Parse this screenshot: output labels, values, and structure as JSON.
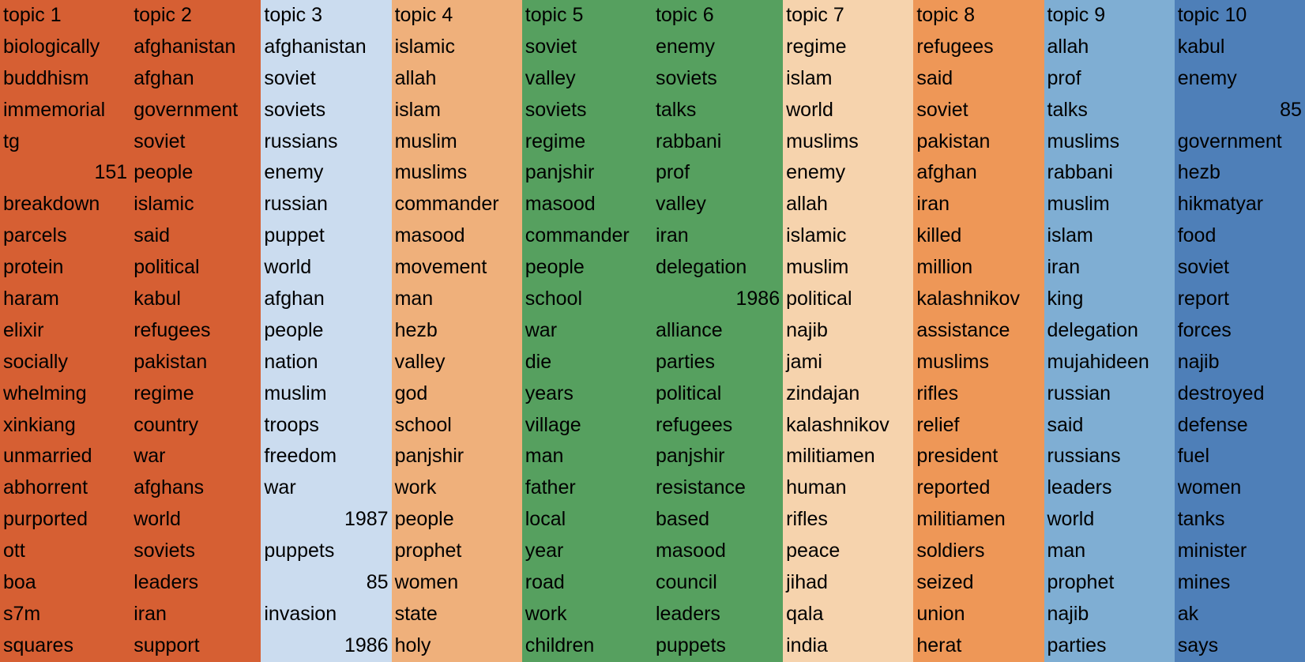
{
  "columns": [
    {
      "header": "topic 1",
      "color": "#D65F33",
      "words": [
        "biologically",
        "buddhism",
        "immemorial",
        "tg",
        "151",
        "breakdown",
        "parcels",
        "protein",
        "haram",
        "elixir",
        "socially",
        "whelming",
        "xinkiang",
        "unmarried",
        "abhorrent",
        "purported",
        "ott",
        "boa",
        "s7m",
        "squares"
      ]
    },
    {
      "header": "topic 2",
      "color": "#D65F33",
      "words": [
        "afghanistan",
        "afghan",
        "government",
        "soviet",
        "people",
        "islamic",
        "said",
        "political",
        "kabul",
        "refugees",
        "pakistan",
        "regime",
        "country",
        "war",
        "afghans",
        "world",
        "soviets",
        "leaders",
        "iran",
        "support"
      ]
    },
    {
      "header": "topic 3",
      "color": "#CBDCEF",
      "words": [
        "afghanistan",
        "soviet",
        "soviets",
        "russians",
        "enemy",
        "russian",
        "puppet",
        "world",
        "afghan",
        "people",
        "nation",
        "muslim",
        "troops",
        "freedom",
        "war",
        "1987",
        "puppets",
        "85",
        "invasion",
        "1986"
      ]
    },
    {
      "header": "topic 4",
      "color": "#EFB07B",
      "words": [
        "islamic",
        "allah",
        "islam",
        "muslim",
        "muslims",
        "commander",
        "masood",
        "movement",
        "man",
        "hezb",
        "valley",
        "god",
        "school",
        "panjshir",
        "work",
        "people",
        "prophet",
        "women",
        "state",
        "holy"
      ]
    },
    {
      "header": "topic 5",
      "color": "#56A05F",
      "words": [
        "soviet",
        "valley",
        "soviets",
        "regime",
        "panjshir",
        "masood",
        "commander",
        "people",
        "school",
        "war",
        "die",
        "years",
        "village",
        "man",
        "father",
        "local",
        "year",
        "road",
        "work",
        "children"
      ]
    },
    {
      "header": "topic 6",
      "color": "#56A05F",
      "words": [
        "enemy",
        "soviets",
        "talks",
        "rabbani",
        "prof",
        "valley",
        "iran",
        "delegation",
        "1986",
        "alliance",
        "parties",
        "political",
        "refugees",
        "panjshir",
        "resistance",
        "based",
        "masood",
        "council",
        "leaders",
        "puppets"
      ]
    },
    {
      "header": "topic 7",
      "color": "#F6D3AD",
      "words": [
        "regime",
        "islam",
        "world",
        "muslims",
        "enemy",
        "allah",
        "islamic",
        "muslim",
        "political",
        "najib",
        "jami",
        "zindajan",
        "kalashnikov",
        "militiamen",
        "human",
        "rifles",
        "peace",
        "jihad",
        "qala",
        "india"
      ]
    },
    {
      "header": "topic 8",
      "color": "#EE9757",
      "words": [
        "refugees",
        "said",
        "soviet",
        "pakistan",
        "afghan",
        "iran",
        "killed",
        "million",
        "kalashnikov",
        "assistance",
        "muslims",
        "rifles",
        "relief",
        "president",
        "reported",
        "militiamen",
        "soldiers",
        "seized",
        "union",
        "herat"
      ]
    },
    {
      "header": "topic 9",
      "color": "#7FAED3",
      "words": [
        "allah",
        "prof",
        "talks",
        "muslims",
        "rabbani",
        "muslim",
        "islam",
        "iran",
        "king",
        "delegation",
        "mujahideen",
        "russian",
        "said",
        "russians",
        "leaders",
        "world",
        "man",
        "prophet",
        "najib",
        "parties"
      ]
    },
    {
      "header": "topic 10",
      "color": "#4E7FB8",
      "words": [
        "kabul",
        "enemy",
        "85",
        "government",
        "hezb",
        "hikmatyar",
        "food",
        "soviet",
        "report",
        "forces",
        "najib",
        "destroyed",
        "defense",
        "fuel",
        "women",
        "tanks",
        "minister",
        "mines",
        "ak",
        "says"
      ]
    }
  ]
}
